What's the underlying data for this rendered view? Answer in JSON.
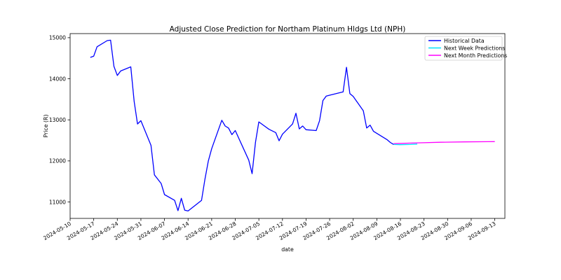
{
  "chart_data": {
    "type": "line",
    "title": "Adjusted Close Prediction for Northam Platinum Hldgs Ltd (NPH)",
    "xlabel": "date",
    "ylabel": "Price (R)",
    "xlim": [
      "2024-05-10",
      "2024-09-16"
    ],
    "ylim": [
      10600,
      15100
    ],
    "x_ticks": [
      "2024-05-10",
      "2024-05-17",
      "2024-05-24",
      "2024-05-31",
      "2024-06-07",
      "2024-06-14",
      "2024-06-21",
      "2024-06-28",
      "2024-07-05",
      "2024-07-12",
      "2024-07-19",
      "2024-07-26",
      "2024-08-02",
      "2024-08-09",
      "2024-08-16",
      "2024-08-23",
      "2024-08-30",
      "2024-09-06",
      "2024-09-13"
    ],
    "y_ticks": [
      11000,
      12000,
      13000,
      14000,
      15000
    ],
    "grid": false,
    "legend_position": "top-right",
    "series": [
      {
        "name": "Historical Data",
        "color": "#0000ff",
        "x": [
          "2024-05-16",
          "2024-05-17",
          "2024-05-18",
          "2024-05-21",
          "2024-05-22",
          "2024-05-23",
          "2024-05-24",
          "2024-05-25",
          "2024-05-28",
          "2024-05-29",
          "2024-05-30",
          "2024-05-31",
          "2024-06-03",
          "2024-06-04",
          "2024-06-06",
          "2024-06-07",
          "2024-06-10",
          "2024-06-11",
          "2024-06-12",
          "2024-06-13",
          "2024-06-14",
          "2024-06-18",
          "2024-06-19",
          "2024-06-20",
          "2024-06-21",
          "2024-06-24",
          "2024-06-25",
          "2024-06-26",
          "2024-06-27",
          "2024-06-28",
          "2024-07-02",
          "2024-07-03",
          "2024-07-04",
          "2024-07-05",
          "2024-07-08",
          "2024-07-10",
          "2024-07-11",
          "2024-07-12",
          "2024-07-15",
          "2024-07-16",
          "2024-07-17",
          "2024-07-18",
          "2024-07-19",
          "2024-07-22",
          "2024-07-23",
          "2024-07-24",
          "2024-07-25",
          "2024-07-26",
          "2024-07-30",
          "2024-07-31",
          "2024-08-01",
          "2024-08-02",
          "2024-08-05",
          "2024-08-06",
          "2024-08-07",
          "2024-08-08",
          "2024-08-12",
          "2024-08-13",
          "2024-08-14"
        ],
        "values": [
          14520,
          14550,
          14780,
          14930,
          14940,
          14300,
          14080,
          14190,
          14290,
          13450,
          12900,
          12980,
          12380,
          11660,
          11450,
          11180,
          11040,
          10790,
          11090,
          10800,
          10780,
          11040,
          11550,
          12000,
          12300,
          12990,
          12850,
          12800,
          12640,
          12740,
          12020,
          11690,
          12450,
          12950,
          12770,
          12690,
          12490,
          12650,
          12900,
          13160,
          12780,
          12850,
          12760,
          12740,
          12980,
          13470,
          13580,
          13600,
          13680,
          14280,
          13640,
          13570,
          13220,
          12800,
          12870,
          12720,
          12520,
          12450,
          12400
        ]
      },
      {
        "name": "Next Week Predictions",
        "color": "#00e5ff",
        "x": [
          "2024-08-14",
          "2024-08-16",
          "2024-08-19",
          "2024-08-21"
        ],
        "values": [
          12400,
          12395,
          12400,
          12410
        ]
      },
      {
        "name": "Next Month Predictions",
        "color": "#ff00ff",
        "x": [
          "2024-08-14",
          "2024-08-21",
          "2024-08-28",
          "2024-09-04",
          "2024-09-11",
          "2024-09-13"
        ],
        "values": [
          12420,
          12440,
          12455,
          12463,
          12468,
          12470
        ]
      }
    ]
  }
}
